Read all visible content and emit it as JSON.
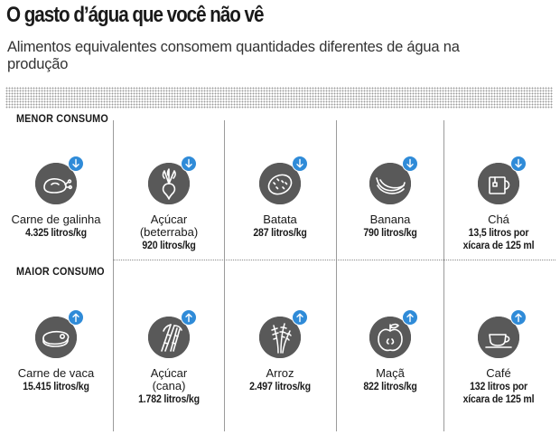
{
  "title": "O gasto d’água que você não vê",
  "subtitle": "Alimentos equivalentes consomem quantidades diferentes de água na produção",
  "sections": {
    "low": "MENOR CONSUMO",
    "high": "MAIOR CONSUMO"
  },
  "low": [
    {
      "name": "Carne de galinha",
      "value": "4.325 litros/kg",
      "icon": "chicken-icon"
    },
    {
      "name": "Açúcar (beterraba)",
      "value": "920 litros/kg",
      "icon": "beet-icon"
    },
    {
      "name": "Batata",
      "value": "287 litros/kg",
      "icon": "potato-icon"
    },
    {
      "name": "Banana",
      "value": "790 litros/kg",
      "icon": "banana-icon"
    },
    {
      "name": "Chá",
      "value": "13,5 litros por xícara de 125 ml",
      "icon": "tea-icon"
    }
  ],
  "high": [
    {
      "name": "Carne de vaca",
      "value": "15.415 litros/kg",
      "icon": "beef-icon"
    },
    {
      "name": "Açúcar (cana)",
      "value": "1.782 litros/kg",
      "icon": "sugarcane-icon"
    },
    {
      "name": "Arroz",
      "value": "2.497 litros/kg",
      "icon": "rice-icon"
    },
    {
      "name": "Maçã",
      "value": "822 litros/kg",
      "icon": "apple-icon"
    },
    {
      "name": "Café",
      "value": "132 litros por xícara de 125 ml",
      "icon": "coffee-icon"
    }
  ],
  "colors": {
    "icon_circle": "#595959",
    "arrow_badge": "#2f8bd8"
  }
}
